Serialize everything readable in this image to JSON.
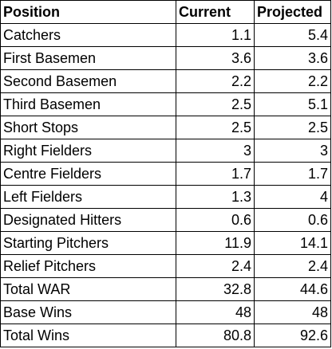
{
  "table": {
    "headers": {
      "position": "Position",
      "current": "Current",
      "projected": "Projected"
    },
    "rows": [
      {
        "position": "Catchers",
        "current": "1.1",
        "projected": "5.4"
      },
      {
        "position": "First Basemen",
        "current": "3.6",
        "projected": "3.6"
      },
      {
        "position": "Second Basemen",
        "current": "2.2",
        "projected": "2.2"
      },
      {
        "position": "Third Basemen",
        "current": "2.5",
        "projected": "5.1"
      },
      {
        "position": "Short Stops",
        "current": "2.5",
        "projected": "2.5"
      },
      {
        "position": "Right Fielders",
        "current": "3",
        "projected": "3"
      },
      {
        "position": "Centre Fielders",
        "current": "1.7",
        "projected": "1.7"
      },
      {
        "position": "Left Fielders",
        "current": "1.3",
        "projected": "4"
      },
      {
        "position": "Designated Hitters",
        "current": "0.6",
        "projected": "0.6"
      },
      {
        "position": "Starting Pitchers",
        "current": "11.9",
        "projected": "14.1"
      },
      {
        "position": "Relief Pitchers",
        "current": "2.4",
        "projected": "2.4"
      },
      {
        "position": "Total WAR",
        "current": "32.8",
        "projected": "44.6"
      },
      {
        "position": "Base Wins",
        "current": "48",
        "projected": "48"
      },
      {
        "position": "Total Wins",
        "current": "80.8",
        "projected": "92.6"
      }
    ]
  }
}
